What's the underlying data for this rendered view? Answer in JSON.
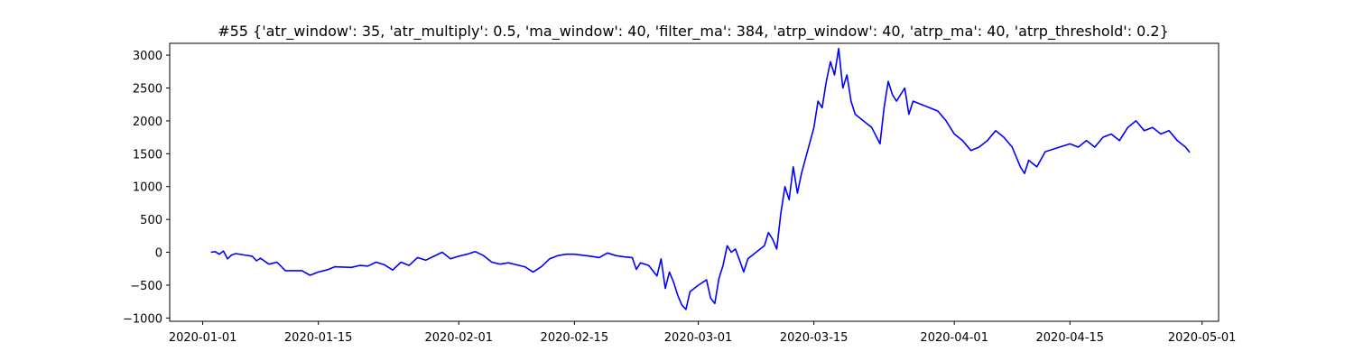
{
  "chart_data": {
    "type": "line",
    "title": "#55 {'atr_window': 35, 'atr_multiply': 0.5, 'ma_window': 40, 'filter_ma': 384, 'atrp_window': 40, 'atrp_ma': 40, 'atrp_threshold': 0.2}",
    "xlabel": "",
    "ylabel": "",
    "x_axis_type": "date",
    "xlim": [
      "2019-12-28",
      "2020-05-03"
    ],
    "ylim": [
      -1050,
      3180
    ],
    "x_ticks": [
      "2020-01-01",
      "2020-01-15",
      "2020-02-01",
      "2020-02-15",
      "2020-03-01",
      "2020-03-15",
      "2020-04-01",
      "2020-04-15",
      "2020-05-01"
    ],
    "y_ticks": [
      3000,
      2500,
      2000,
      1500,
      1000,
      500,
      0,
      -500,
      -1000
    ],
    "y_tick_labels": [
      "3000",
      "2500",
      "2000",
      "1500",
      "1000",
      "500",
      "0",
      "−500",
      "−1000"
    ],
    "grid": false,
    "series": [
      {
        "color": "#0000ff",
        "points": [
          [
            "2020-01-02",
            0
          ],
          [
            "2020-01-02T12:00",
            10
          ],
          [
            "2020-01-03",
            -30
          ],
          [
            "2020-01-03T12:00",
            20
          ],
          [
            "2020-01-04",
            -100
          ],
          [
            "2020-01-04T12:00",
            -40
          ],
          [
            "2020-01-05",
            -20
          ],
          [
            "2020-01-06",
            -40
          ],
          [
            "2020-01-07",
            -60
          ],
          [
            "2020-01-07T12:00",
            -130
          ],
          [
            "2020-01-08",
            -90
          ],
          [
            "2020-01-09",
            -180
          ],
          [
            "2020-01-10",
            -150
          ],
          [
            "2020-01-11",
            -280
          ],
          [
            "2020-01-13",
            -280
          ],
          [
            "2020-01-14",
            -350
          ],
          [
            "2020-01-15",
            -300
          ],
          [
            "2020-01-16",
            -270
          ],
          [
            "2020-01-17",
            -220
          ],
          [
            "2020-01-19",
            -230
          ],
          [
            "2020-01-20",
            -200
          ],
          [
            "2020-01-21",
            -210
          ],
          [
            "2020-01-22",
            -150
          ],
          [
            "2020-01-23",
            -190
          ],
          [
            "2020-01-24",
            -270
          ],
          [
            "2020-01-25",
            -150
          ],
          [
            "2020-01-26",
            -200
          ],
          [
            "2020-01-27",
            -80
          ],
          [
            "2020-01-28",
            -120
          ],
          [
            "2020-01-29",
            -60
          ],
          [
            "2020-01-30",
            0
          ],
          [
            "2020-01-31",
            -100
          ],
          [
            "2020-02-01",
            -60
          ],
          [
            "2020-02-02",
            -30
          ],
          [
            "2020-02-03",
            10
          ],
          [
            "2020-02-04",
            -50
          ],
          [
            "2020-02-05",
            -150
          ],
          [
            "2020-02-06",
            -180
          ],
          [
            "2020-02-07",
            -160
          ],
          [
            "2020-02-09",
            -220
          ],
          [
            "2020-02-10",
            -300
          ],
          [
            "2020-02-11",
            -220
          ],
          [
            "2020-02-12",
            -100
          ],
          [
            "2020-02-13",
            -50
          ],
          [
            "2020-02-14",
            -30
          ],
          [
            "2020-02-15",
            -30
          ],
          [
            "2020-02-17",
            -60
          ],
          [
            "2020-02-18",
            -80
          ],
          [
            "2020-02-19",
            -10
          ],
          [
            "2020-02-20",
            -50
          ],
          [
            "2020-02-21",
            -70
          ],
          [
            "2020-02-22",
            -80
          ],
          [
            "2020-02-22T12:00",
            -260
          ],
          [
            "2020-02-23",
            -160
          ],
          [
            "2020-02-24",
            -200
          ],
          [
            "2020-02-25",
            -360
          ],
          [
            "2020-02-25T12:00",
            -100
          ],
          [
            "2020-02-26",
            -550
          ],
          [
            "2020-02-26T12:00",
            -300
          ],
          [
            "2020-02-27",
            -450
          ],
          [
            "2020-02-27T12:00",
            -650
          ],
          [
            "2020-02-28",
            -800
          ],
          [
            "2020-02-28T12:00",
            -870
          ],
          [
            "2020-02-29",
            -600
          ],
          [
            "2020-03-01",
            -500
          ],
          [
            "2020-03-02",
            -420
          ],
          [
            "2020-03-02T12:00",
            -700
          ],
          [
            "2020-03-03",
            -780
          ],
          [
            "2020-03-03T12:00",
            -400
          ],
          [
            "2020-03-04",
            -200
          ],
          [
            "2020-03-04T12:00",
            100
          ],
          [
            "2020-03-05",
            0
          ],
          [
            "2020-03-05T12:00",
            50
          ],
          [
            "2020-03-06",
            -120
          ],
          [
            "2020-03-06T12:00",
            -300
          ],
          [
            "2020-03-07",
            -100
          ],
          [
            "2020-03-08",
            0
          ],
          [
            "2020-03-09",
            100
          ],
          [
            "2020-03-09T12:00",
            300
          ],
          [
            "2020-03-10",
            200
          ],
          [
            "2020-03-10T12:00",
            50
          ],
          [
            "2020-03-11",
            600
          ],
          [
            "2020-03-11T12:00",
            1000
          ],
          [
            "2020-03-12",
            800
          ],
          [
            "2020-03-12T12:00",
            1300
          ],
          [
            "2020-03-13",
            900
          ],
          [
            "2020-03-13T12:00",
            1200
          ],
          [
            "2020-03-15",
            1900
          ],
          [
            "2020-03-15T12:00",
            2300
          ],
          [
            "2020-03-16",
            2200
          ],
          [
            "2020-03-16T12:00",
            2600
          ],
          [
            "2020-03-17",
            2900
          ],
          [
            "2020-03-17T12:00",
            2700
          ],
          [
            "2020-03-18",
            3100
          ],
          [
            "2020-03-18T12:00",
            2500
          ],
          [
            "2020-03-19",
            2700
          ],
          [
            "2020-03-19T12:00",
            2300
          ],
          [
            "2020-03-20",
            2100
          ],
          [
            "2020-03-22",
            1900
          ],
          [
            "2020-03-23",
            1650
          ],
          [
            "2020-03-23T12:00",
            2200
          ],
          [
            "2020-03-24",
            2600
          ],
          [
            "2020-03-24T12:00",
            2400
          ],
          [
            "2020-03-25",
            2300
          ],
          [
            "2020-03-26",
            2500
          ],
          [
            "2020-03-26T12:00",
            2100
          ],
          [
            "2020-03-27",
            2300
          ],
          [
            "2020-03-28",
            2250
          ],
          [
            "2020-03-30",
            2150
          ],
          [
            "2020-03-31",
            2000
          ],
          [
            "2020-04-01",
            1800
          ],
          [
            "2020-04-02",
            1700
          ],
          [
            "2020-04-03",
            1550
          ],
          [
            "2020-04-04",
            1600
          ],
          [
            "2020-04-05",
            1700
          ],
          [
            "2020-04-06",
            1850
          ],
          [
            "2020-04-07",
            1750
          ],
          [
            "2020-04-08",
            1600
          ],
          [
            "2020-04-09",
            1300
          ],
          [
            "2020-04-09T12:00",
            1200
          ],
          [
            "2020-04-10",
            1400
          ],
          [
            "2020-04-11",
            1300
          ],
          [
            "2020-04-12",
            1530
          ],
          [
            "2020-04-15",
            1650
          ],
          [
            "2020-04-16",
            1600
          ],
          [
            "2020-04-17",
            1700
          ],
          [
            "2020-04-18",
            1600
          ],
          [
            "2020-04-19",
            1750
          ],
          [
            "2020-04-20",
            1800
          ],
          [
            "2020-04-21",
            1700
          ],
          [
            "2020-04-22",
            1900
          ],
          [
            "2020-04-23",
            2000
          ],
          [
            "2020-04-24",
            1850
          ],
          [
            "2020-04-25",
            1900
          ],
          [
            "2020-04-26",
            1800
          ],
          [
            "2020-04-27",
            1850
          ],
          [
            "2020-04-28",
            1700
          ],
          [
            "2020-04-28T12:00",
            1650
          ],
          [
            "2020-04-29",
            1600
          ],
          [
            "2020-04-29T12:00",
            1520
          ]
        ]
      }
    ]
  }
}
